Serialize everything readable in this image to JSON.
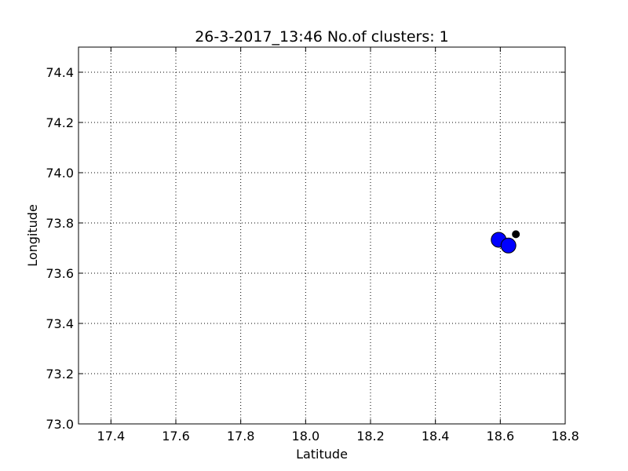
{
  "chart_data": {
    "type": "scatter",
    "title": "26-3-2017_13:46 No.of clusters: 1",
    "xlabel": "Latitude",
    "ylabel": "Longitude",
    "xlim": [
      17.3,
      18.8
    ],
    "ylim": [
      73.0,
      74.5
    ],
    "xticks": [
      "17.4",
      "17.6",
      "17.8",
      "18.0",
      "18.2",
      "18.4",
      "18.6",
      "18.8"
    ],
    "yticks": [
      "73.0",
      "73.2",
      "73.4",
      "73.6",
      "73.8",
      "74.0",
      "74.2",
      "74.4"
    ],
    "grid": true,
    "series": [
      {
        "color": "#0000ff",
        "marker_size": "large",
        "points": [
          {
            "x": 18.595,
            "y": 73.733
          },
          {
            "x": 18.625,
            "y": 73.71
          }
        ]
      },
      {
        "color": "#000000",
        "marker_size": "small",
        "points": [
          {
            "x": 18.648,
            "y": 73.755
          }
        ]
      }
    ]
  }
}
